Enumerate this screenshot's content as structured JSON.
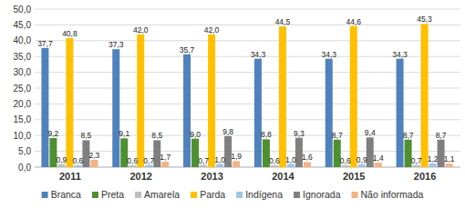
{
  "chart_data": {
    "type": "bar",
    "categories": [
      "2011",
      "2012",
      "2013",
      "2014",
      "2015",
      "2016"
    ],
    "ylim": [
      0,
      50
    ],
    "yticks": [
      {
        "value": 0,
        "label": "0,0"
      },
      {
        "value": 5,
        "label": "5,0"
      },
      {
        "value": 10,
        "label": "10,0"
      },
      {
        "value": 15,
        "label": "15,0"
      },
      {
        "value": 20,
        "label": "20,0"
      },
      {
        "value": 25,
        "label": "25,0"
      },
      {
        "value": 30,
        "label": "30,0"
      },
      {
        "value": 35,
        "label": "35,0"
      },
      {
        "value": 40,
        "label": "40,0"
      },
      {
        "value": 45,
        "label": "45,0"
      },
      {
        "value": 50,
        "label": "50,0"
      }
    ],
    "grid": true,
    "data_labels": true,
    "legend": "bottom",
    "series": [
      {
        "name": "Branca",
        "color": "#4f81bd",
        "values": [
          37.7,
          37.3,
          35.7,
          34.3,
          34.3,
          34.3
        ],
        "value_labels": [
          "37,7",
          "37,3",
          "35,7",
          "34,3",
          "34,3",
          "34,3"
        ]
      },
      {
        "name": "Preta",
        "color": "#4e8f2f",
        "values": [
          9.2,
          9.1,
          9.0,
          8.8,
          8.7,
          8.7
        ],
        "value_labels": [
          "9,2",
          "9,1",
          "9,0",
          "8,8",
          "8,7",
          "8,7"
        ]
      },
      {
        "name": "Amarela",
        "color": "#bfbfbf",
        "values": [
          0.9,
          0.6,
          0.7,
          0.6,
          0.6,
          0.7
        ],
        "value_labels": [
          "0,9",
          "0,6",
          "0,7",
          "0,6",
          "0,6",
          "0,7"
        ]
      },
      {
        "name": "Parda",
        "color": "#ffc000",
        "values": [
          40.8,
          42.0,
          42.0,
          44.5,
          44.6,
          45.3
        ],
        "value_labels": [
          "40,8",
          "42,0",
          "42,0",
          "44,5",
          "44,6",
          "45,3"
        ]
      },
      {
        "name": "Indígena",
        "color": "#9dc3e6",
        "values": [
          0.6,
          0.7,
          1.0,
          1.0,
          0.9,
          1.2
        ],
        "value_labels": [
          "0,6",
          "0,7",
          "1,0",
          "1,0",
          "0,9",
          "1,2"
        ]
      },
      {
        "name": "Ignorada",
        "color": "#7f7f7f",
        "values": [
          8.5,
          8.5,
          9.8,
          9.3,
          9.4,
          8.7
        ],
        "value_labels": [
          "8,5",
          "8,5",
          "9,8",
          "9,3",
          "9,4",
          "8,7"
        ]
      },
      {
        "name": "Não informada",
        "color": "#f4b183",
        "values": [
          2.3,
          1.7,
          1.9,
          1.6,
          1.4,
          1.1
        ],
        "value_labels": [
          "2,3",
          "1,7",
          "1,9",
          "1,6",
          "1,4",
          "1,1"
        ]
      }
    ]
  }
}
